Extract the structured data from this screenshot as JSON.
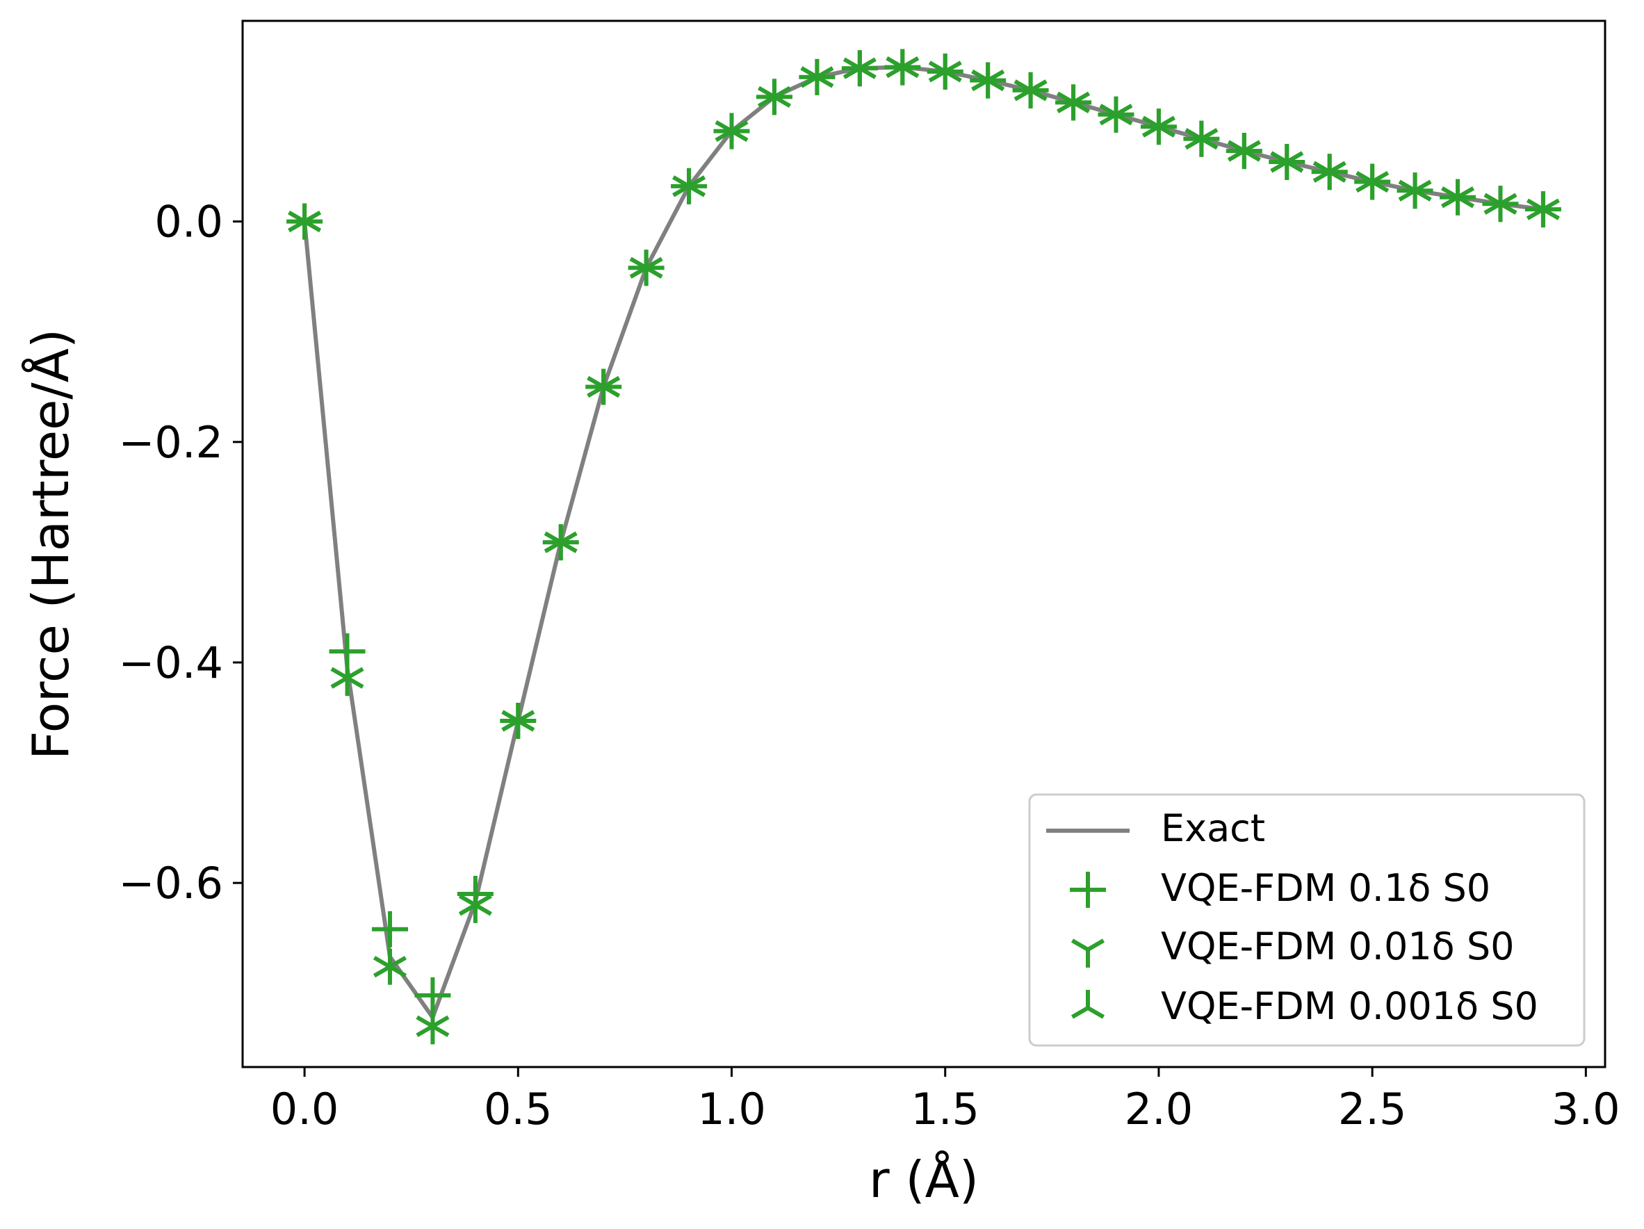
{
  "chart_data": {
    "type": "line",
    "title": "",
    "xlabel": "r (Å)",
    "ylabel": "Force (Hartree/Å)",
    "xlim": [
      -0.145,
      3.045
    ],
    "ylim": [
      -0.767,
      0.182
    ],
    "xticks": [
      0.0,
      0.5,
      1.0,
      1.5,
      2.0,
      2.5,
      3.0
    ],
    "xtick_labels": [
      "0.0",
      "0.5",
      "1.0",
      "1.5",
      "2.0",
      "2.5",
      "3.0"
    ],
    "yticks": [
      0.0,
      -0.2,
      -0.4,
      -0.6
    ],
    "ytick_labels": [
      "0.0",
      "−0.2",
      "−0.4",
      "−0.6"
    ],
    "legend_position": "lower-right",
    "grid": false,
    "x": [
      0.0,
      0.1,
      0.2,
      0.3,
      0.4,
      0.5,
      0.6,
      0.7,
      0.8,
      0.9,
      1.0,
      1.1,
      1.2,
      1.3,
      1.4,
      1.5,
      1.6,
      1.7,
      1.8,
      1.9,
      2.0,
      2.1,
      2.2,
      2.3,
      2.4,
      2.5,
      2.6,
      2.7,
      2.8,
      2.9
    ],
    "series": [
      {
        "name": "Exact",
        "style": "line",
        "color": "#808080",
        "values": [
          0.0,
          -0.405,
          -0.667,
          -0.722,
          -0.617,
          -0.453,
          -0.291,
          -0.15,
          -0.042,
          0.032,
          0.082,
          0.113,
          0.131,
          0.139,
          0.14,
          0.136,
          0.128,
          0.119,
          0.108,
          0.097,
          0.086,
          0.075,
          0.064,
          0.054,
          0.045,
          0.036,
          0.028,
          0.022,
          0.016,
          0.011
        ]
      },
      {
        "name": "VQE-FDM 0.1δ S0",
        "style": "marker",
        "marker": "plus",
        "color": "#2ca02c",
        "values": [
          0.0,
          -0.39,
          -0.642,
          -0.702,
          -0.61,
          -0.453,
          -0.291,
          -0.15,
          -0.042,
          0.032,
          0.082,
          0.113,
          0.131,
          0.139,
          0.14,
          0.136,
          0.128,
          0.119,
          0.108,
          0.097,
          0.086,
          0.075,
          0.064,
          0.054,
          0.045,
          0.036,
          0.028,
          0.022,
          0.016,
          0.011
        ]
      },
      {
        "name": "VQE-FDM 0.01δ S0",
        "style": "marker",
        "marker": "tri_down",
        "color": "#2ca02c",
        "values": [
          0.0,
          -0.414,
          -0.676,
          -0.73,
          -0.62,
          -0.453,
          -0.291,
          -0.15,
          -0.042,
          0.032,
          0.082,
          0.113,
          0.131,
          0.139,
          0.14,
          0.136,
          0.128,
          0.119,
          0.108,
          0.097,
          0.086,
          0.075,
          0.064,
          0.054,
          0.045,
          0.036,
          0.028,
          0.022,
          0.016,
          0.011
        ]
      },
      {
        "name": "VQE-FDM 0.001δ S0",
        "style": "marker",
        "marker": "tri_up",
        "color": "#2ca02c",
        "values": [
          0.0,
          -0.414,
          -0.676,
          -0.73,
          -0.62,
          -0.453,
          -0.291,
          -0.15,
          -0.042,
          0.032,
          0.082,
          0.113,
          0.131,
          0.139,
          0.14,
          0.136,
          0.128,
          0.119,
          0.108,
          0.097,
          0.086,
          0.075,
          0.064,
          0.054,
          0.045,
          0.036,
          0.028,
          0.022,
          0.016,
          0.011
        ]
      }
    ]
  }
}
